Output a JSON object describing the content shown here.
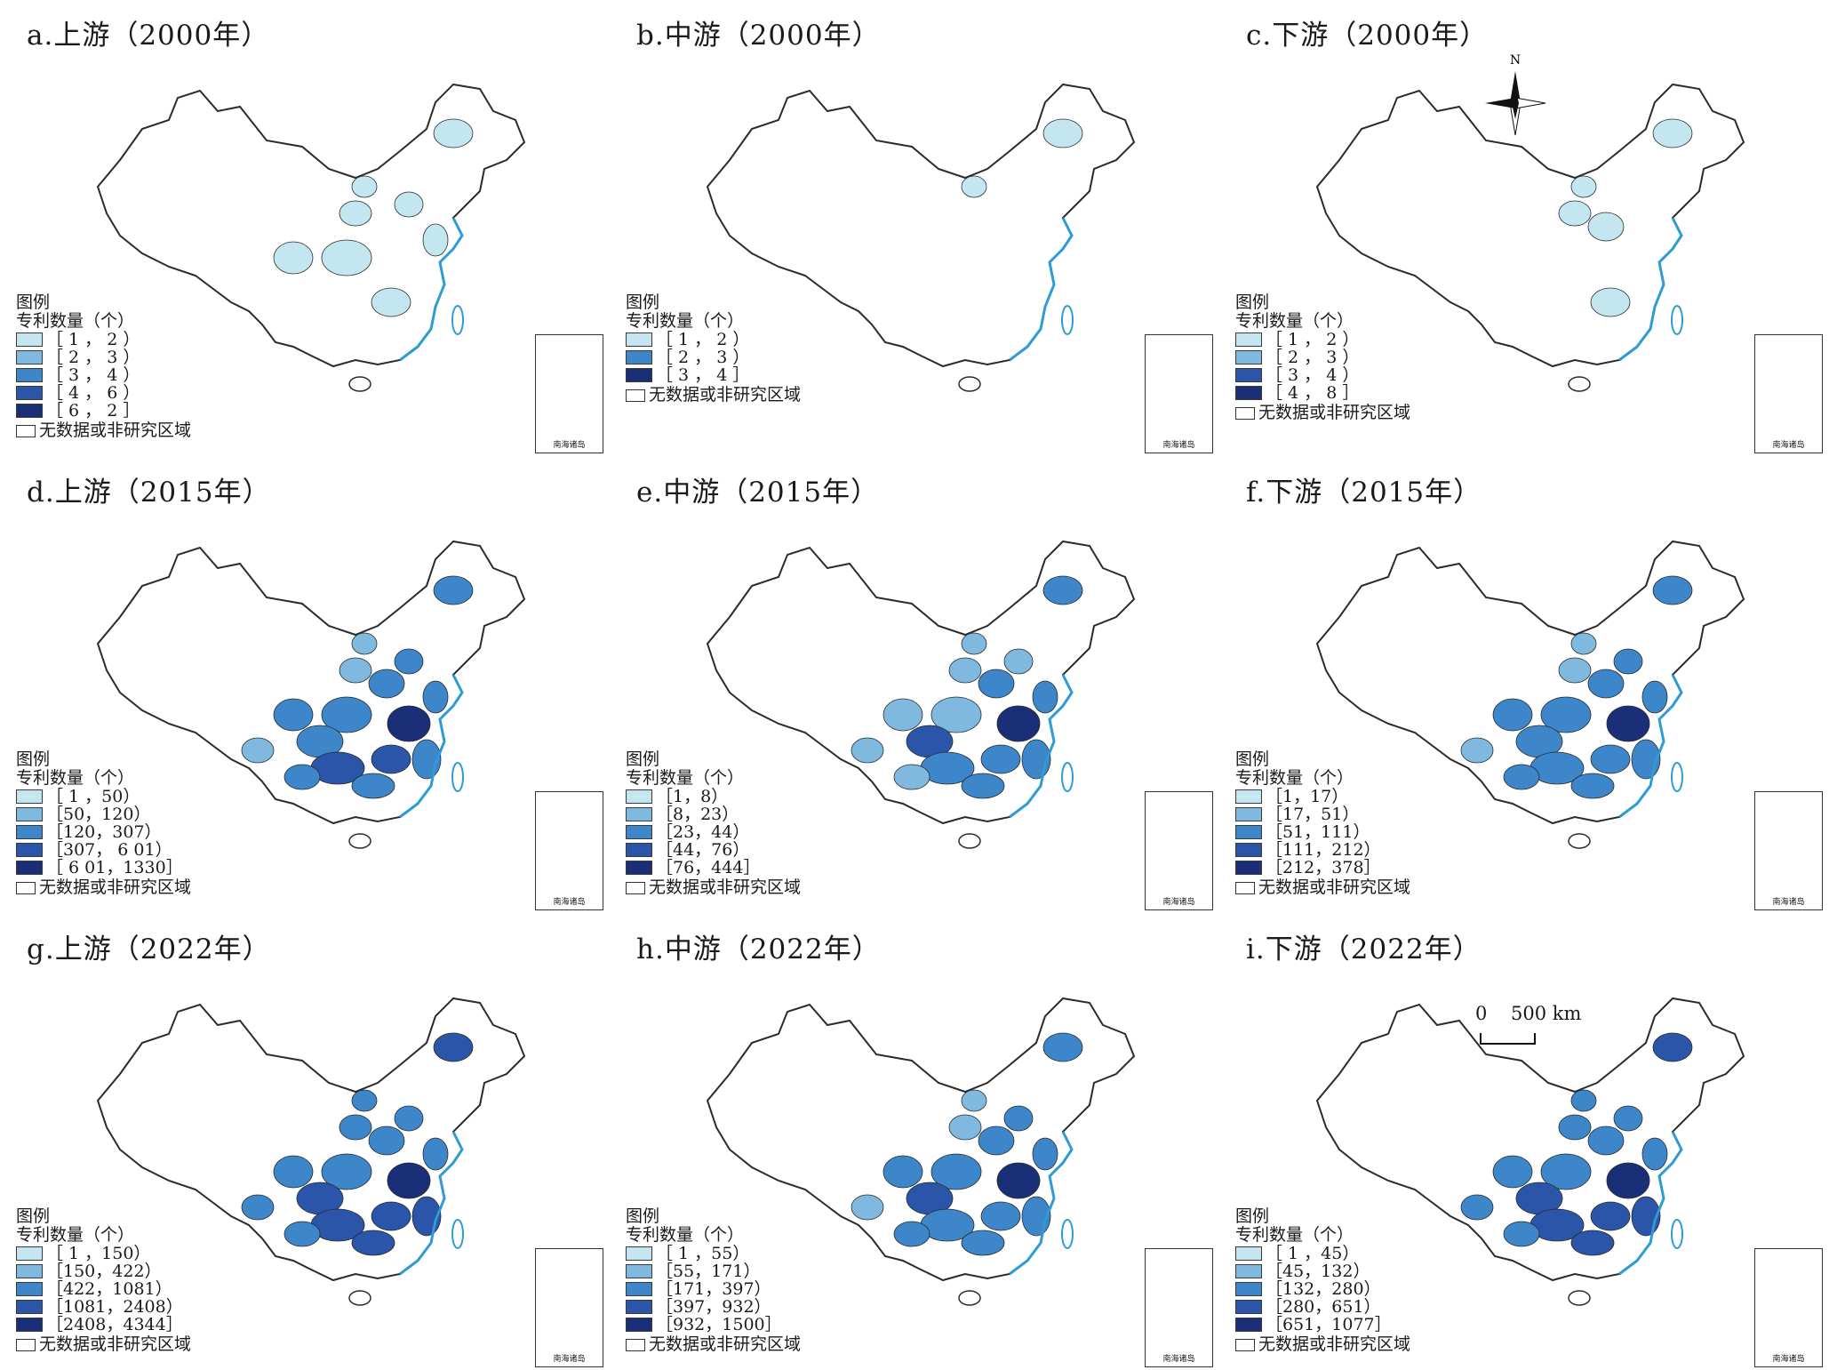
{
  "panels": [
    {
      "title": "a.上游（2000年）",
      "legend_title": "图例",
      "legend_subtitle": "专利数量（个）",
      "classes": [
        {
          "range": "［ 1 ， 2 ）",
          "color": "#c4e6f0"
        },
        {
          "range": "［ 2 ， 3 ）",
          "color": "#7fb9df"
        },
        {
          "range": "［ 3 ， 4 ）",
          "color": "#3c86c9"
        },
        {
          "range": "［ 4 ， 6 ）",
          "color": "#2a55a8"
        },
        {
          "range": "［ 6 ， 2 ］",
          "color": "#1b2f78"
        }
      ],
      "no_data": "无数据或非研究区域",
      "inset_label": "南海诸岛"
    },
    {
      "title": "b.中游（2000年）",
      "legend_title": "图例",
      "legend_subtitle": "专利数量（个）",
      "classes": [
        {
          "range": "［ 1 ， 2 ）",
          "color": "#c4e6f0"
        },
        {
          "range": "［ 2 ， 3 ）",
          "color": "#3c86c9"
        },
        {
          "range": "［ 3 ， 4 ］",
          "color": "#1b2f78"
        }
      ],
      "no_data": "无数据或非研究区域",
      "inset_label": "南海诸岛"
    },
    {
      "title": "c.下游（2000年）",
      "legend_title": "图例",
      "legend_subtitle": "专利数量（个）",
      "classes": [
        {
          "range": "［ 1 ， 2 ）",
          "color": "#c4e6f0"
        },
        {
          "range": "［ 2 ， 3 ）",
          "color": "#7fb9df"
        },
        {
          "range": "［ 3 ， 4 ）",
          "color": "#2a55a8"
        },
        {
          "range": "［ 4 ， 8 ］",
          "color": "#1b2f78"
        }
      ],
      "no_data": "无数据或非研究区域",
      "inset_label": "南海诸岛"
    },
    {
      "title": "d.上游（2015年）",
      "legend_title": "图例",
      "legend_subtitle": "专利数量（个）",
      "classes": [
        {
          "range": "［ 1 ，50）",
          "color": "#c4e6f0"
        },
        {
          "range": "［50，120）",
          "color": "#7fb9df"
        },
        {
          "range": "［120，307）",
          "color": "#3c86c9"
        },
        {
          "range": "［307， 6 01）",
          "color": "#2a55a8"
        },
        {
          "range": "［ 6 01，1330］",
          "color": "#1b2f78"
        }
      ],
      "no_data": "无数据或非研究区域",
      "inset_label": "南海诸岛"
    },
    {
      "title": "e.中游（2015年）",
      "legend_title": "图例",
      "legend_subtitle": "专利数量（个）",
      "classes": [
        {
          "range": "［1，8）",
          "color": "#c4e6f0"
        },
        {
          "range": "［8，23）",
          "color": "#7fb9df"
        },
        {
          "range": "［23，44）",
          "color": "#3c86c9"
        },
        {
          "range": "［44，76）",
          "color": "#2a55a8"
        },
        {
          "range": "［76，444］",
          "color": "#1b2f78"
        }
      ],
      "no_data": "无数据或非研究区域",
      "inset_label": "南海诸岛"
    },
    {
      "title": "f.下游（2015年）",
      "legend_title": "图例",
      "legend_subtitle": "专利数量（个）",
      "classes": [
        {
          "range": "［1，17）",
          "color": "#c4e6f0"
        },
        {
          "range": "［17，51）",
          "color": "#7fb9df"
        },
        {
          "range": "［51，111）",
          "color": "#3c86c9"
        },
        {
          "range": "［111，212）",
          "color": "#2a55a8"
        },
        {
          "range": "［212，378］",
          "color": "#1b2f78"
        }
      ],
      "no_data": "无数据或非研究区域",
      "inset_label": "南海诸岛"
    },
    {
      "title": "g.上游（2022年）",
      "legend_title": "图例",
      "legend_subtitle": "专利数量（个）",
      "classes": [
        {
          "range": "［ 1 ，150）",
          "color": "#c4e6f0"
        },
        {
          "range": "［150，422）",
          "color": "#7fb9df"
        },
        {
          "range": "［422，1081）",
          "color": "#3c86c9"
        },
        {
          "range": "［1081，2408）",
          "color": "#2a55a8"
        },
        {
          "range": "［2408，4344］",
          "color": "#1b2f78"
        }
      ],
      "no_data": "无数据或非研究区域",
      "inset_label": "南海诸岛"
    },
    {
      "title": "h.中游（2022年）",
      "legend_title": "图例",
      "legend_subtitle": "专利数量（个）",
      "classes": [
        {
          "range": "［ 1 ，55）",
          "color": "#c4e6f0"
        },
        {
          "range": "［55，171）",
          "color": "#7fb9df"
        },
        {
          "range": "［171，397）",
          "color": "#3c86c9"
        },
        {
          "range": "［397，932）",
          "color": "#2a55a8"
        },
        {
          "range": "［932，1500］",
          "color": "#1b2f78"
        }
      ],
      "no_data": "无数据或非研究区域",
      "inset_label": "南海诸岛"
    },
    {
      "title": "i.下游（2022年）",
      "legend_title": "图例",
      "legend_subtitle": "专利数量（个）",
      "classes": [
        {
          "range": "［ 1 ，45）",
          "color": "#c4e6f0"
        },
        {
          "range": "［45，132）",
          "color": "#7fb9df"
        },
        {
          "range": "［132，280）",
          "color": "#3c86c9"
        },
        {
          "range": "［280，651）",
          "color": "#2a55a8"
        },
        {
          "range": "［651，1077］",
          "color": "#1b2f78"
        }
      ],
      "no_data": "无数据或非研究区域",
      "inset_label": "南海诸岛"
    }
  ],
  "north_arrow": {
    "label": "N"
  },
  "scale_bar": {
    "zero": "0",
    "distance": "500 km"
  },
  "colors": {
    "border": "#2b2b2b",
    "coast": "#2e9bd6",
    "no_data": "#ffffff"
  }
}
